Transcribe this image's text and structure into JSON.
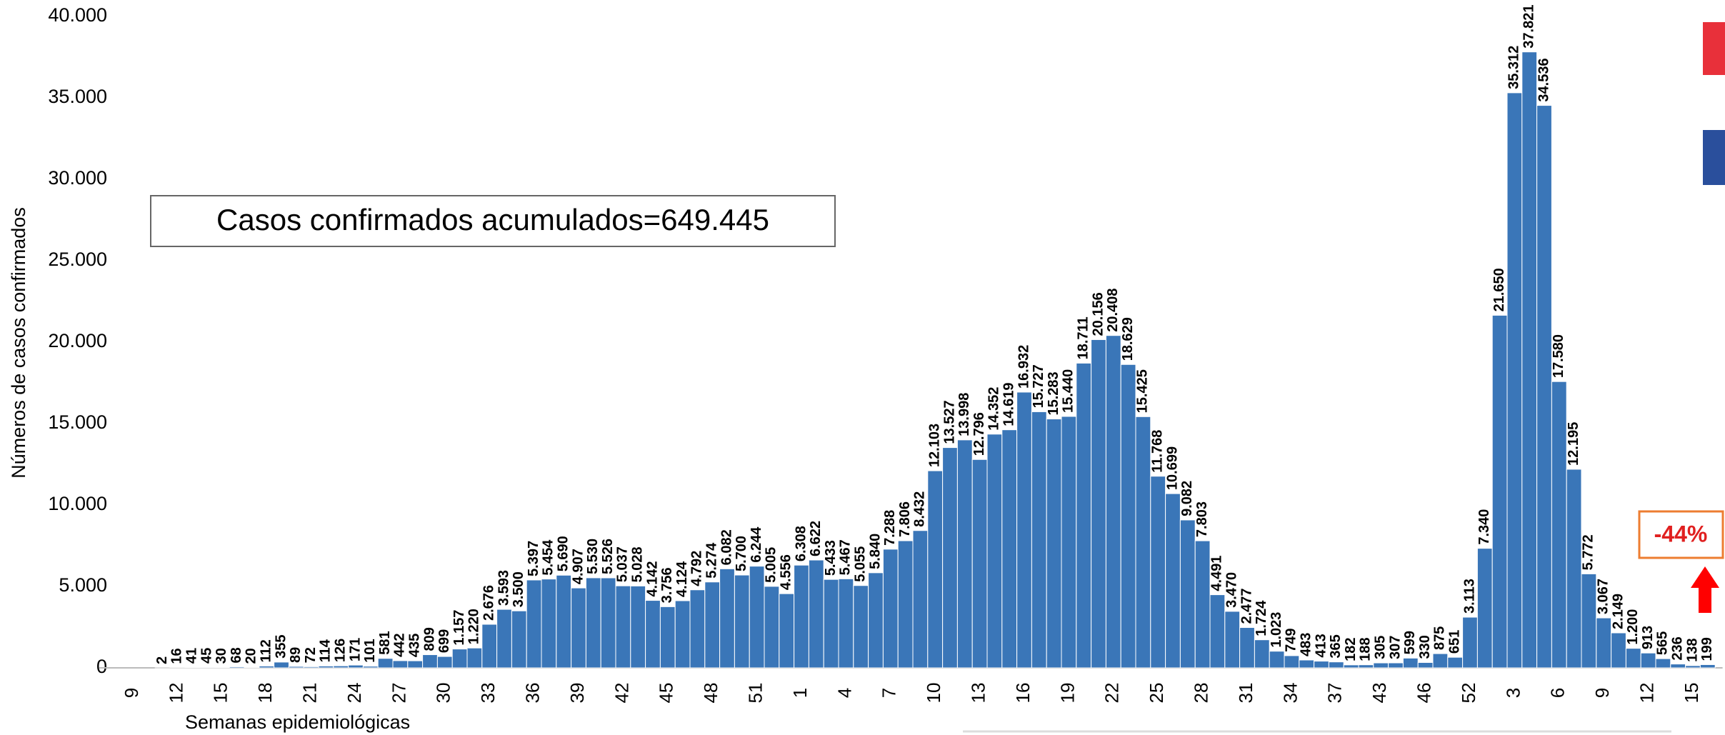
{
  "chart_data": {
    "type": "bar",
    "y_label": "Números de casos confirmados",
    "x_label": "Semanas epidemiológicas",
    "annotation": "Casos confirmados acumulados=649.445",
    "change_label": "-44%",
    "color": "#3a76b8",
    "ylim": [
      0,
      40000
    ],
    "yticks": [
      0,
      {
        "value": 5000,
        "label": "5.000"
      },
      {
        "value": 10000,
        "label": "10.000"
      },
      {
        "value": 15000,
        "label": "15.000"
      },
      {
        "value": 20000,
        "label": "20.000"
      },
      {
        "value": 25000,
        "label": "25.000"
      },
      {
        "value": 30000,
        "label": "30.000"
      },
      {
        "value": 35000,
        "label": "35.000"
      },
      {
        "value": 40000,
        "label": "40.000"
      }
    ],
    "categories": [
      "9",
      null,
      null,
      "12",
      null,
      null,
      "15",
      null,
      null,
      "18",
      null,
      null,
      "21",
      null,
      null,
      "24",
      null,
      null,
      "27",
      null,
      null,
      "30",
      null,
      null,
      "33",
      null,
      null,
      "36",
      null,
      null,
      "39",
      null,
      null,
      "42",
      null,
      null,
      "45",
      null,
      null,
      "48",
      null,
      null,
      "51",
      null,
      null,
      "1",
      null,
      null,
      "4",
      null,
      null,
      "7",
      null,
      null,
      "10",
      null,
      null,
      "13",
      null,
      null,
      "16",
      null,
      null,
      "19",
      null,
      null,
      "22",
      null,
      null,
      "25",
      null,
      null,
      "28",
      null,
      null,
      "31",
      null,
      null,
      "34",
      null,
      null,
      "37",
      null,
      null,
      "43",
      null,
      null,
      "46",
      null,
      null,
      "52",
      null,
      null,
      "3",
      null,
      null,
      "6",
      null,
      null,
      "9",
      null,
      null,
      "12",
      null,
      null,
      "15",
      null
    ],
    "values": [
      null,
      null,
      2,
      16,
      41,
      45,
      30,
      68,
      20,
      112,
      355,
      89,
      72,
      114,
      126,
      171,
      101,
      581,
      442,
      435,
      809,
      699,
      1157,
      1220,
      2676,
      3593,
      3500,
      5397,
      5454,
      5690,
      4907,
      5530,
      5526,
      5037,
      5028,
      4142,
      3756,
      4124,
      4792,
      5274,
      6082,
      5700,
      6244,
      5005,
      4556,
      6308,
      6622,
      5433,
      5467,
      5055,
      5840,
      7288,
      7806,
      8432,
      12103,
      13527,
      13998,
      12796,
      14352,
      14619,
      16932,
      15727,
      15283,
      15440,
      18711,
      20156,
      20408,
      18629,
      15425,
      11768,
      10699,
      9082,
      7803,
      4491,
      3470,
      2477,
      1724,
      1023,
      749,
      483,
      413,
      365,
      182,
      188,
      305,
      307,
      599,
      330,
      875,
      651,
      3113,
      7340,
      21650,
      35312,
      37821,
      34536,
      17580,
      12195,
      5772,
      3067,
      2149,
      1200,
      913,
      565,
      236,
      138,
      199
    ],
    "value_labels": [
      null,
      null,
      "2",
      "16",
      "41",
      "45",
      "30",
      "68",
      "20",
      "112",
      "355",
      "89",
      "72",
      "114",
      "126",
      "171",
      "101",
      "581",
      "442",
      "435",
      "809",
      "699",
      "1.157",
      "1.220",
      "2.676",
      "3.593",
      "3.500",
      "5.397",
      "5.454",
      "5.690",
      "4.907",
      "5.530",
      "5.526",
      "5.037",
      "5.028",
      "4.142",
      "3.756",
      "4.124",
      "4.792",
      "5.274",
      "6.082",
      "5.700",
      "6.244",
      "5.005",
      "4.556",
      "6.308",
      "6.622",
      "5.433",
      "5.467",
      "5.055",
      "5.840",
      "7.288",
      "7.806",
      "8.432",
      "12.103",
      "13.527",
      "13.998",
      "12.796",
      "14.352",
      "14.619",
      "16.932",
      "15.727",
      "15.283",
      "15.440",
      "18.711",
      "20.156",
      "20.408",
      "18.629",
      "15.425",
      "11.768",
      "10.699",
      "9.082",
      "7.803",
      "4.491",
      "3.470",
      "2.477",
      "1.724",
      "1.023",
      "749",
      "483",
      "413",
      "365",
      "182",
      "188",
      "305",
      "307",
      "599",
      "330",
      "875",
      "651",
      "3.113",
      "7.340",
      "21.650",
      "35.312",
      "37.821",
      "34.536",
      "17.580",
      "12.195",
      "5.772",
      "3.067",
      "2.149",
      "1.200",
      "913",
      "565",
      "236",
      "138",
      "199"
    ]
  }
}
